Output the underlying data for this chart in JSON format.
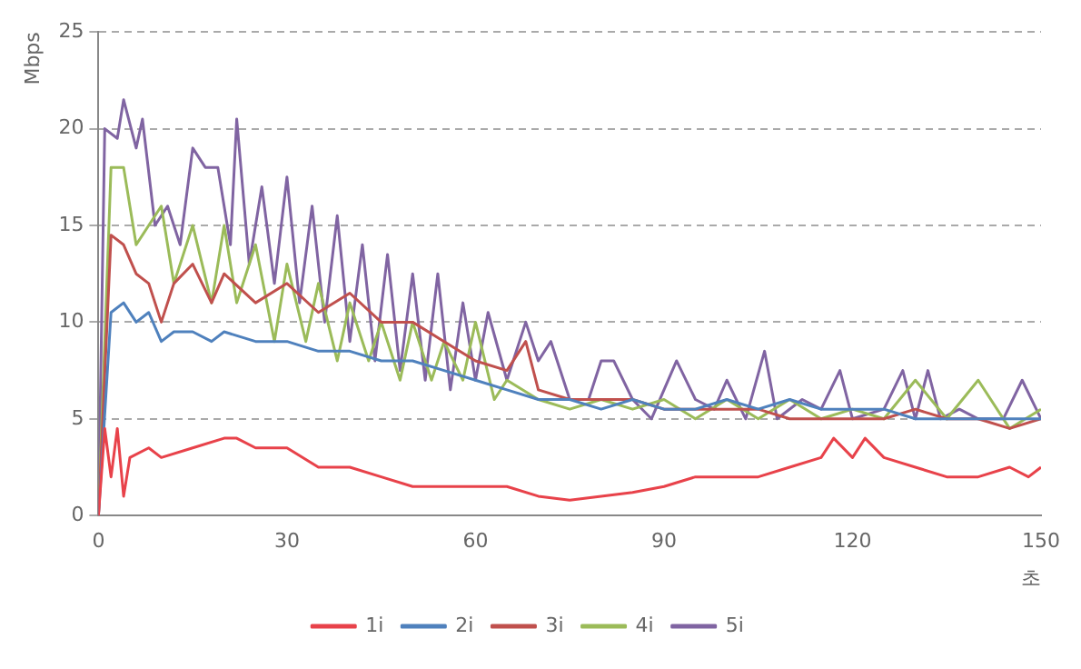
{
  "chart_data": {
    "type": "line",
    "xlabel": "초",
    "ylabel": "Mbps",
    "xlim": [
      0,
      150
    ],
    "xticks": [
      0,
      30,
      60,
      90,
      120,
      150
    ],
    "ylim": [
      0,
      25
    ],
    "yticks": [
      0,
      5,
      10,
      15,
      20,
      25
    ],
    "grid": "y",
    "line_style": "solid",
    "marker": "none",
    "legend": "bottom",
    "series": [
      {
        "name": "1i",
        "color": "#e8424a",
        "x": [
          0,
          1,
          2,
          3,
          4,
          5,
          8,
          10,
          15,
          20,
          22,
          25,
          30,
          35,
          40,
          45,
          50,
          55,
          60,
          65,
          70,
          75,
          80,
          85,
          90,
          95,
          100,
          105,
          110,
          115,
          117,
          120,
          122,
          125,
          130,
          135,
          140,
          145,
          148,
          150
        ],
        "values": [
          0,
          4.5,
          2,
          4.5,
          1,
          3,
          3.5,
          3,
          3.5,
          4,
          4,
          3.5,
          3.5,
          2.5,
          2.5,
          2,
          1.5,
          1.5,
          1.5,
          1.5,
          1,
          0.8,
          1,
          1.2,
          1.5,
          2,
          2,
          2,
          2.5,
          3,
          4,
          3,
          4,
          3,
          2.5,
          2,
          2,
          2.5,
          2,
          2.5
        ]
      },
      {
        "name": "2i",
        "color": "#4f81bd",
        "x": [
          0,
          2,
          4,
          6,
          8,
          10,
          12,
          15,
          18,
          20,
          25,
          30,
          35,
          40,
          45,
          50,
          55,
          60,
          65,
          70,
          75,
          80,
          85,
          90,
          95,
          100,
          105,
          110,
          115,
          120,
          125,
          130,
          135,
          140,
          145,
          150
        ],
        "values": [
          0,
          10.5,
          11,
          10,
          10.5,
          9,
          9.5,
          9.5,
          9,
          9.5,
          9,
          9,
          8.5,
          8.5,
          8,
          8,
          7.5,
          7,
          6.5,
          6,
          6,
          5.5,
          6,
          5.5,
          5.5,
          6,
          5.5,
          6,
          5.5,
          5.5,
          5.5,
          5,
          5,
          5,
          5,
          5
        ]
      },
      {
        "name": "3i",
        "color": "#c0504d",
        "x": [
          0,
          2,
          4,
          6,
          8,
          10,
          12,
          15,
          18,
          20,
          25,
          30,
          35,
          40,
          45,
          50,
          55,
          60,
          65,
          68,
          70,
          75,
          80,
          85,
          90,
          95,
          100,
          105,
          110,
          115,
          120,
          125,
          130,
          135,
          140,
          145,
          150
        ],
        "values": [
          0,
          14.5,
          14,
          12.5,
          12,
          10,
          12,
          13,
          11,
          12.5,
          11,
          12,
          10.5,
          11.5,
          10,
          10,
          9,
          8,
          7.5,
          9,
          6.5,
          6,
          6,
          6,
          5.5,
          5.5,
          5.5,
          5.5,
          5,
          5,
          5,
          5,
          5.5,
          5,
          5,
          4.5,
          5
        ]
      },
      {
        "name": "4i",
        "color": "#9bbb59",
        "x": [
          0,
          2,
          4,
          6,
          8,
          10,
          12,
          15,
          18,
          20,
          22,
          25,
          28,
          30,
          33,
          35,
          38,
          40,
          43,
          45,
          48,
          50,
          53,
          55,
          58,
          60,
          63,
          65,
          70,
          75,
          80,
          85,
          90,
          95,
          100,
          105,
          110,
          115,
          120,
          125,
          130,
          135,
          140,
          145,
          150
        ],
        "values": [
          0,
          18,
          18,
          14,
          15,
          16,
          12,
          15,
          11,
          15,
          11,
          14,
          9,
          13,
          9,
          12,
          8,
          11,
          8,
          10,
          7,
          10,
          7,
          9,
          7,
          10,
          6,
          7,
          6,
          5.5,
          6,
          5.5,
          6,
          5,
          6,
          5,
          6,
          5,
          5.5,
          5,
          7,
          5,
          7,
          4.5,
          5.5
        ]
      },
      {
        "name": "5i",
        "color": "#8064a2",
        "x": [
          0,
          1,
          3,
          4,
          6,
          7,
          9,
          11,
          13,
          15,
          17,
          19,
          21,
          22,
          24,
          26,
          28,
          30,
          32,
          34,
          36,
          38,
          40,
          42,
          44,
          46,
          48,
          50,
          52,
          54,
          56,
          58,
          60,
          62,
          65,
          68,
          70,
          72,
          75,
          78,
          80,
          82,
          85,
          88,
          92,
          95,
          98,
          100,
          103,
          106,
          108,
          112,
          115,
          118,
          120,
          125,
          128,
          130,
          132,
          134,
          137,
          140,
          144,
          147,
          150
        ],
        "values": [
          0,
          20,
          19.5,
          21.5,
          19,
          20.5,
          15,
          16,
          14,
          19,
          18,
          18,
          14,
          20.5,
          13,
          17,
          12,
          17.5,
          11,
          16,
          10,
          15.5,
          9,
          14,
          8,
          13.5,
          7.5,
          12.5,
          7,
          12.5,
          6.5,
          11,
          7,
          10.5,
          7,
          10,
          8,
          9,
          6,
          6,
          8,
          8,
          6,
          5,
          8,
          6,
          5.5,
          7,
          5,
          8.5,
          5,
          6,
          5.5,
          7.5,
          5,
          5.5,
          7.5,
          5,
          7.5,
          5,
          5.5,
          5,
          5,
          7,
          5
        ]
      }
    ]
  }
}
